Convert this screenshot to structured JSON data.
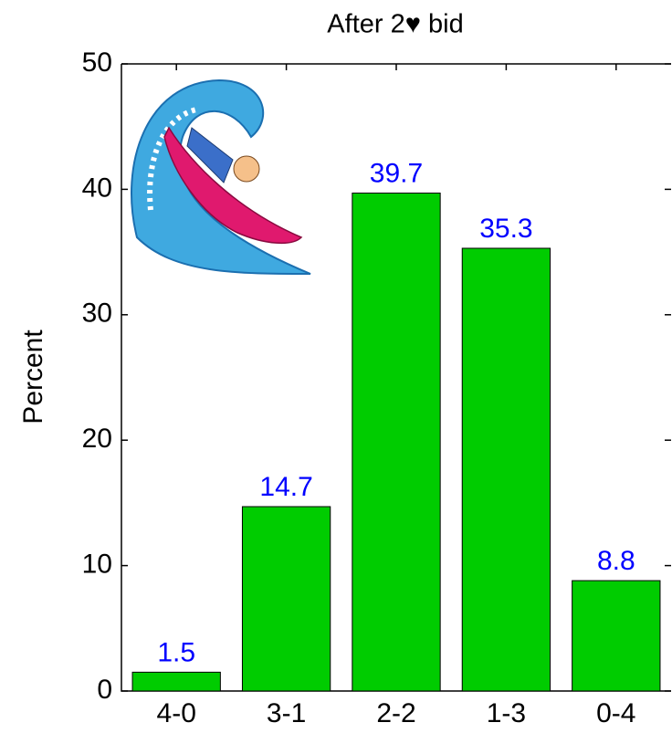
{
  "chart_data": {
    "type": "bar",
    "title": "After 2♥ bid",
    "y_label": "Percent",
    "categories": [
      "4-0",
      "3-1",
      "2-2",
      "1-3",
      "0-4"
    ],
    "values": [
      1.5,
      14.7,
      39.7,
      35.3,
      8.8
    ],
    "color": "#00cc00",
    "label_color": "#0000ff",
    "ylim": [
      0,
      50
    ],
    "yticks": [
      0,
      10,
      20,
      30,
      40,
      50
    ]
  }
}
